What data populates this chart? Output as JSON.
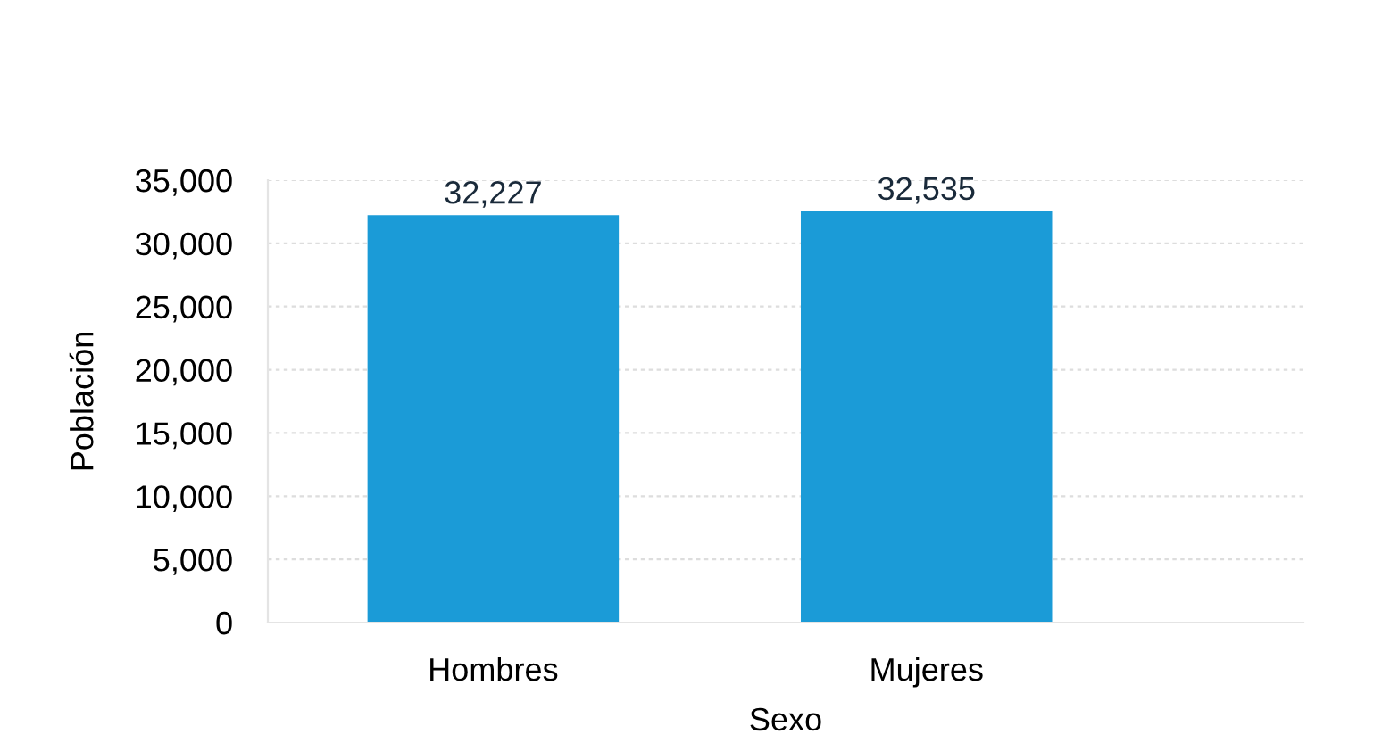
{
  "chart_data": {
    "type": "bar",
    "xlabel": "Sexo",
    "ylabel": "Población",
    "categories": [
      "Hombres",
      "Mujeres"
    ],
    "values": [
      32227,
      32535
    ],
    "color": "#1b9bd7",
    "ylim": [
      0,
      35000
    ],
    "yticks": [
      {
        "value": 0,
        "label": "0"
      },
      {
        "value": 5000,
        "label": "5,000"
      },
      {
        "value": 10000,
        "label": "10,000"
      },
      {
        "value": 15000,
        "label": "15,000"
      },
      {
        "value": 20000,
        "label": "20,000"
      },
      {
        "value": 25000,
        "label": "25,000"
      },
      {
        "value": 30000,
        "label": "30,000"
      },
      {
        "value": 35000,
        "label": "35,000"
      }
    ],
    "value_labels": [
      "32,227",
      "32,535"
    ],
    "grid": "y"
  }
}
